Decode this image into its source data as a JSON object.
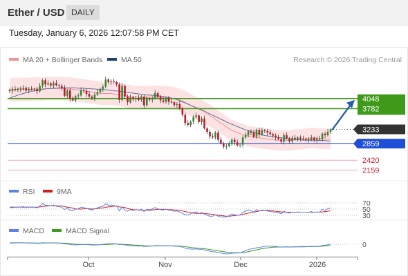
{
  "header": {
    "title": "Ether / USD",
    "timeframe": "DAILY"
  },
  "timestamp": "Tuesday, January 6, 2026 12:07:58 PM CET",
  "legend": {
    "bb": "MA 20 + Bollinger Bands",
    "ma50": "MA 50",
    "credit": "Research © 2026 Trading Central"
  },
  "rsi_legend": {
    "rsi": "RSI",
    "ma": "9MA"
  },
  "macd_legend": {
    "macd": "MACD",
    "signal": "MACD Signal"
  },
  "colors": {
    "resistance": "#3f9a1a",
    "support": "#1f4fd6",
    "target": "#f4a6ad",
    "candle_up": "#2e8b2e",
    "candle_down": "#c0162b",
    "arrow": "#2a5caa"
  },
  "chart_data": {
    "type": "candlestick",
    "x_ticks": [
      "Oct",
      "Nov",
      "Dec",
      "2026"
    ],
    "ylim": [
      1950,
      4900
    ],
    "levels": [
      {
        "label": "4048",
        "value": 4048,
        "kind": "resistance"
      },
      {
        "label": "3782",
        "value": 3782,
        "kind": "resistance"
      },
      {
        "label": "3233",
        "value": 3233,
        "kind": "last"
      },
      {
        "label": "2859",
        "value": 2859,
        "kind": "support"
      },
      {
        "label": "2420",
        "value": 2420,
        "kind": "target"
      },
      {
        "label": "2159",
        "value": 2159,
        "kind": "target"
      }
    ],
    "close": [
      4250,
      4300,
      4270,
      4310,
      4290,
      4330,
      4260,
      4300,
      4290,
      4300,
      4240,
      4380,
      4530,
      4420,
      4450,
      4390,
      4460,
      4400,
      4380,
      4330,
      4120,
      4260,
      4040,
      4000,
      4110,
      4130,
      4270,
      4250,
      4170,
      4100,
      4060,
      4150,
      4220,
      4300,
      4360,
      4550,
      4480,
      4500,
      4480,
      4420,
      4010,
      4380,
      4100,
      3950,
      4080,
      4030,
      4060,
      4010,
      4100,
      3870,
      4040,
      4020,
      4050,
      4190,
      4090,
      4000,
      3960,
      4060,
      3960,
      3950,
      3880,
      3900,
      3790,
      3620,
      3400,
      3350,
      3440,
      3560,
      3600,
      3430,
      3520,
      3260,
      3170,
      3050,
      3020,
      3150,
      2960,
      2870,
      2780,
      2790,
      2850,
      2960,
      2890,
      2810,
      2830,
      3020,
      3080,
      3180,
      3150,
      3040,
      3220,
      3100,
      3210,
      3190,
      3150,
      3110,
      3070,
      3020,
      2980,
      2910,
      3080,
      3000,
      2920,
      3010,
      2970,
      3020,
      2990,
      2980,
      2970,
      2960,
      3010,
      2950,
      2990,
      2970,
      3120,
      3080,
      3170,
      3233
    ],
    "ma20": [
      4280,
      4280,
      4280,
      4280,
      4290,
      4290,
      4290,
      4290,
      4300,
      4300,
      4300,
      4300,
      4300,
      4310,
      4310,
      4310,
      4310,
      4310,
      4310,
      4310,
      4300,
      4300,
      4300,
      4290,
      4280,
      4270,
      4260,
      4250,
      4240,
      4230,
      4220,
      4210,
      4200,
      4190,
      4180,
      4180,
      4180,
      4180,
      4170,
      4160,
      4150,
      4140,
      4130,
      4110,
      4100,
      4090,
      4090,
      4080,
      4080,
      4070,
      4080,
      4080,
      4090,
      4090,
      4090,
      4080,
      4080,
      4080,
      4070,
      4060,
      4050,
      4030,
      4010,
      3980,
      3950,
      3910,
      3870,
      3830,
      3800,
      3760,
      3730,
      3690,
      3640,
      3600,
      3550,
      3500,
      3450,
      3400,
      3350,
      3300,
      3250,
      3210,
      3180,
      3150,
      3120,
      3100,
      3080,
      3060,
      3040,
      3030,
      3020,
      3010,
      3000,
      2990,
      2980,
      2970,
      2960,
      2950,
      2950,
      2940,
      2940,
      2940,
      2940,
      2950,
      2960,
      2970,
      2970,
      2980,
      2990,
      3000,
      3010,
      3010,
      3000,
      2990,
      2990,
      2980,
      2980,
      2980
    ],
    "ma50": [
      4060,
      4090,
      4110,
      4140,
      4160,
      4180,
      4200,
      4220,
      4240,
      4250,
      4260,
      4270,
      4290,
      4300,
      4310,
      4310,
      4320,
      4320,
      4330,
      4330,
      4330,
      4330,
      4330,
      4330,
      4330,
      4320,
      4320,
      4320,
      4310,
      4310,
      4300,
      4300,
      4290,
      4290,
      4280,
      4280,
      4270,
      4260,
      4250,
      4250,
      4240,
      4230,
      4220,
      4210,
      4200,
      4190,
      4180,
      4170,
      4160,
      4150,
      4140,
      4140,
      4130,
      4130,
      4120,
      4110,
      4100,
      4090,
      4070,
      4060,
      4040,
      4020,
      3990,
      3960,
      3930,
      3900,
      3870,
      3840,
      3810,
      3780,
      3750,
      3720,
      3680,
      3640,
      3610,
      3570,
      3540,
      3500,
      3470,
      3430,
      3400,
      3370,
      3340,
      3310,
      3280,
      3250,
      3220,
      3200,
      3180,
      3150,
      3130,
      3110,
      3090,
      3070,
      3060,
      3050,
      3040,
      3030,
      3020,
      3010,
      3000,
      2990,
      2980,
      2980,
      2970,
      2960,
      2960,
      2950,
      2950,
      2950,
      2950,
      2950,
      2950,
      2940,
      2940,
      2940,
      2930,
      2930
    ],
    "rsi": [
      56,
      57,
      56,
      57,
      56,
      58,
      55,
      57,
      56,
      56,
      54,
      60,
      68,
      62,
      62,
      60,
      63,
      59,
      58,
      56,
      48,
      54,
      46,
      45,
      50,
      51,
      56,
      55,
      52,
      49,
      47,
      51,
      54,
      57,
      59,
      67,
      62,
      63,
      62,
      59,
      44,
      57,
      47,
      43,
      48,
      46,
      48,
      46,
      50,
      42,
      49,
      48,
      50,
      55,
      51,
      48,
      47,
      50,
      46,
      46,
      43,
      44,
      41,
      36,
      32,
      31,
      35,
      40,
      41,
      36,
      39,
      33,
      30,
      27,
      27,
      32,
      27,
      25,
      24,
      25,
      29,
      34,
      32,
      30,
      31,
      40,
      43,
      47,
      45,
      40,
      48,
      43,
      47,
      46,
      44,
      42,
      41,
      39,
      38,
      35,
      43,
      39,
      37,
      41,
      39,
      41,
      40,
      40,
      40,
      39,
      42,
      39,
      41,
      40,
      49,
      46,
      51,
      54
    ],
    "rsi_ma": [
      55,
      55,
      56,
      56,
      56,
      56,
      56,
      56,
      56,
      56,
      56,
      57,
      58,
      59,
      60,
      61,
      61,
      61,
      60,
      60,
      58,
      56,
      55,
      53,
      51,
      50,
      50,
      51,
      52,
      51,
      50,
      51,
      52,
      53,
      54,
      56,
      57,
      58,
      59,
      60,
      57,
      56,
      55,
      52,
      50,
      48,
      48,
      47,
      47,
      46,
      46,
      46,
      47,
      48,
      49,
      49,
      49,
      49,
      48,
      48,
      47,
      47,
      46,
      44,
      42,
      40,
      38,
      37,
      36,
      36,
      36,
      36,
      35,
      34,
      33,
      32,
      30,
      29,
      28,
      27,
      27,
      28,
      29,
      30,
      31,
      33,
      35,
      37,
      39,
      40,
      42,
      44,
      45,
      46,
      46,
      45,
      44,
      43,
      42,
      41,
      41,
      40,
      40,
      40,
      40,
      40,
      40,
      40,
      40,
      40,
      40,
      40,
      40,
      40,
      41,
      42,
      43,
      45
    ],
    "rsi_levels": [
      70,
      50,
      30
    ],
    "macd": [
      20,
      22,
      21,
      22,
      21,
      22,
      18,
      18,
      17,
      16,
      13,
      15,
      22,
      20,
      20,
      19,
      21,
      18,
      16,
      13,
      5,
      4,
      -3,
      -8,
      -9,
      -8,
      -4,
      -3,
      -5,
      -8,
      -11,
      -11,
      -9,
      -6,
      -3,
      5,
      7,
      8,
      8,
      6,
      -6,
      -3,
      -10,
      -18,
      -20,
      -23,
      -24,
      -26,
      -24,
      -32,
      -30,
      -28,
      -26,
      -20,
      -19,
      -20,
      -22,
      -20,
      -22,
      -24,
      -27,
      -29,
      -33,
      -42,
      -55,
      -66,
      -70,
      -70,
      -68,
      -73,
      -72,
      -82,
      -91,
      -102,
      -110,
      -110,
      -119,
      -127,
      -136,
      -139,
      -138,
      -130,
      -128,
      -128,
      -125,
      -110,
      -95,
      -78,
      -67,
      -64,
      -50,
      -48,
      -37,
      -30,
      -28,
      -27,
      -29,
      -32,
      -36,
      -42,
      -37,
      -38,
      -41,
      -38,
      -38,
      -35,
      -34,
      -33,
      -33,
      -33,
      -30,
      -31,
      -29,
      -28,
      -18,
      -14,
      -6,
      2
    ],
    "macd_signal": [
      18,
      19,
      19,
      20,
      20,
      20,
      20,
      20,
      19,
      19,
      18,
      17,
      18,
      18,
      19,
      19,
      19,
      19,
      18,
      17,
      15,
      12,
      9,
      5,
      2,
      0,
      -1,
      -2,
      -2,
      -3,
      -5,
      -6,
      -7,
      -7,
      -6,
      -4,
      -2,
      0,
      2,
      3,
      1,
      0,
      -2,
      -5,
      -8,
      -11,
      -14,
      -16,
      -18,
      -21,
      -23,
      -24,
      -24,
      -24,
      -23,
      -22,
      -22,
      -21,
      -21,
      -22,
      -23,
      -24,
      -26,
      -29,
      -34,
      -40,
      -46,
      -51,
      -54,
      -58,
      -61,
      -65,
      -70,
      -77,
      -83,
      -89,
      -94,
      -101,
      -108,
      -114,
      -119,
      -121,
      -122,
      -123,
      -123,
      -121,
      -116,
      -108,
      -99,
      -90,
      -81,
      -73,
      -65,
      -58,
      -52,
      -47,
      -43,
      -41,
      -40,
      -40,
      -39,
      -39,
      -39,
      -39,
      -39,
      -38,
      -37,
      -37,
      -36,
      -35,
      -34,
      -33,
      -32,
      -31,
      -28,
      -25,
      -21,
      -17
    ],
    "macd_ticks": [
      0
    ],
    "projection": {
      "from": 3233,
      "to": 4048
    }
  }
}
